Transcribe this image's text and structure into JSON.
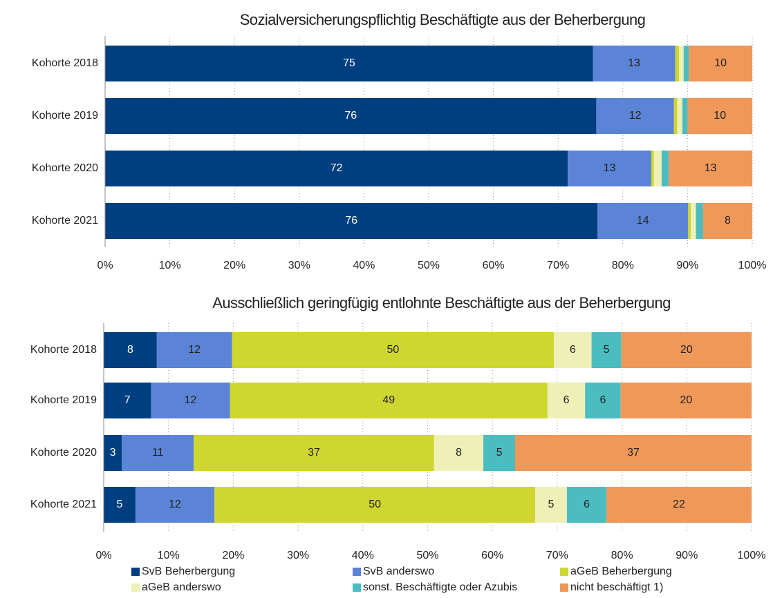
{
  "chart_data": [
    {
      "type": "stacked-barh",
      "title": "Sozialversicherungspflichtig Beschäftigte aus der Beherbergung",
      "categories": [
        "Kohorte 2018",
        "Kohorte 2019",
        "Kohorte 2020",
        "Kohorte 2021"
      ],
      "xlim": [
        0,
        100
      ],
      "xticks": [
        {
          "value": 0,
          "label": "0%"
        },
        {
          "value": 10,
          "label": "10%"
        },
        {
          "value": 20,
          "label": "20%"
        },
        {
          "value": 30,
          "label": "30%"
        },
        {
          "value": 40,
          "label": "40%"
        },
        {
          "value": 50,
          "label": "50%"
        },
        {
          "value": 60,
          "label": "60%"
        },
        {
          "value": 70,
          "label": "70%"
        },
        {
          "value": 80,
          "label": "80%"
        },
        {
          "value": 90,
          "label": "90%"
        },
        {
          "value": 100,
          "label": "100%"
        }
      ],
      "grid": true,
      "series": [
        {
          "name": "SvB Beherbergung",
          "color": "#003f7f",
          "values": [
            75.4,
            75.9,
            71.5,
            76.1
          ],
          "value_labels": [
            "75",
            "76",
            "72",
            "76"
          ]
        },
        {
          "name": "SvB anderswo",
          "color": "#5b84d6",
          "values": [
            12.7,
            12.0,
            12.9,
            14.0
          ],
          "value_labels": [
            "13",
            "12",
            "13",
            "14"
          ]
        },
        {
          "name": "aGeB Beherbergung",
          "color": "#cfd630",
          "values": [
            0.6,
            0.5,
            0.4,
            0.4
          ],
          "value_labels": [
            null,
            null,
            null,
            null
          ]
        },
        {
          "name": "aGeB anderswo",
          "color": "#eef0b8",
          "values": [
            0.7,
            0.8,
            1.2,
            0.8
          ],
          "value_labels": [
            null,
            null,
            null,
            null
          ]
        },
        {
          "name": "sonst. Beschäftigte oder Azubis",
          "color": "#4bbcbf",
          "values": [
            0.8,
            0.8,
            1.1,
            1.1
          ],
          "value_labels": [
            null,
            null,
            null,
            null
          ]
        },
        {
          "name": "nicht beschäftigt 1)",
          "color": "#f0985a",
          "values": [
            9.8,
            10.0,
            12.9,
            7.6
          ],
          "value_labels": [
            "10",
            "10",
            "13",
            "8"
          ]
        }
      ]
    },
    {
      "type": "stacked-barh",
      "title": "Ausschließlich geringfügig entlohnte Beschäftigte aus der Beherbergung",
      "categories": [
        "Kohorte 2018",
        "Kohorte 2019",
        "Kohorte 2020",
        "Kohorte 2021"
      ],
      "xlim": [
        0,
        100
      ],
      "xticks": [
        {
          "value": 0,
          "label": "0%"
        },
        {
          "value": 10,
          "label": "10%"
        },
        {
          "value": 20,
          "label": "20%"
        },
        {
          "value": 30,
          "label": "30%"
        },
        {
          "value": 40,
          "label": "40%"
        },
        {
          "value": 50,
          "label": "50%"
        },
        {
          "value": 60,
          "label": "60%"
        },
        {
          "value": 70,
          "label": "70%"
        },
        {
          "value": 80,
          "label": "80%"
        },
        {
          "value": 90,
          "label": "90%"
        },
        {
          "value": 100,
          "label": "100%"
        }
      ],
      "grid": true,
      "legend": "bottom",
      "series": [
        {
          "name": "SvB Beherbergung",
          "color": "#003f7f",
          "values": [
            8.2,
            7.3,
            2.8,
            4.9
          ],
          "value_labels": [
            "8",
            "7",
            "3",
            "5"
          ]
        },
        {
          "name": "SvB anderswo",
          "color": "#5b84d6",
          "values": [
            11.6,
            12.2,
            11.1,
            12.2
          ],
          "value_labels": [
            "12",
            "12",
            "11",
            "12"
          ]
        },
        {
          "name": "aGeB Beherbergung",
          "color": "#cfd630",
          "values": [
            49.7,
            49.0,
            37.1,
            49.5
          ],
          "value_labels": [
            "50",
            "49",
            "37",
            "50"
          ]
        },
        {
          "name": "aGeB anderswo",
          "color": "#eef0b8",
          "values": [
            5.8,
            5.8,
            7.6,
            4.9
          ],
          "value_labels": [
            "6",
            "6",
            "8",
            "5"
          ]
        },
        {
          "name": "sonst. Beschäftigte oder Azubis",
          "color": "#4bbcbf",
          "values": [
            4.6,
            5.5,
            4.9,
            6.1
          ],
          "value_labels": [
            "5",
            "6",
            "5",
            "6"
          ]
        },
        {
          "name": "nicht beschäftigt 1)",
          "color": "#f0985a",
          "values": [
            20.1,
            20.2,
            36.5,
            22.4
          ],
          "value_labels": [
            "20",
            "20",
            "37",
            "22"
          ]
        }
      ]
    }
  ]
}
